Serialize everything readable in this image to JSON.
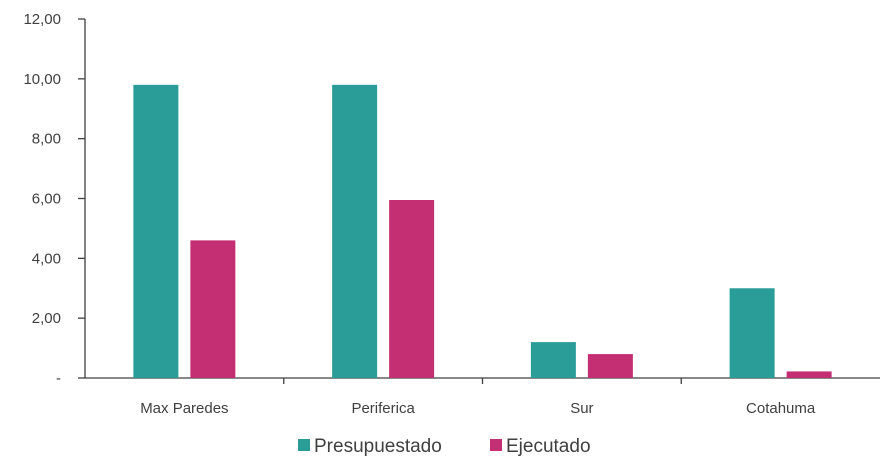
{
  "chart_data": {
    "type": "bar",
    "categories": [
      "Max Paredes",
      "Periferica",
      "Sur",
      "Cotahuma"
    ],
    "series": [
      {
        "name": "Presupuestado",
        "color": "#2A9D99",
        "values": [
          9.8,
          9.8,
          1.2,
          3.0
        ]
      },
      {
        "name": "Ejecutado",
        "color": "#C42E73",
        "values": [
          4.6,
          5.95,
          0.8,
          0.22
        ]
      }
    ],
    "ylim": [
      0,
      12
    ],
    "yticks": [
      0,
      2,
      4,
      6,
      8,
      10,
      12
    ],
    "ytick_labels": [
      "-",
      "2,00",
      "4,00",
      "6,00",
      "8,00",
      "10,00",
      "12,00"
    ],
    "grid": false,
    "legend_position": "bottom",
    "title": "",
    "xlabel": "",
    "ylabel": ""
  }
}
